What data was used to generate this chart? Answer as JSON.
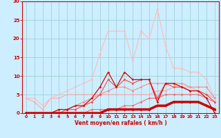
{
  "x": [
    0,
    1,
    2,
    3,
    4,
    5,
    6,
    7,
    8,
    9,
    10,
    11,
    12,
    13,
    14,
    15,
    16,
    17,
    18,
    19,
    20,
    21,
    22,
    23
  ],
  "lines": [
    {
      "y": [
        4,
        3,
        1,
        4,
        4,
        5,
        5,
        5,
        5,
        5,
        5,
        5,
        5,
        5,
        5,
        5,
        6,
        6,
        7,
        7,
        7,
        6,
        5,
        4
      ],
      "color": "#ffaaaa",
      "lw": 0.8,
      "marker": "D",
      "ms": 1.8,
      "zorder": 2
    },
    {
      "y": [
        4,
        4,
        2,
        4,
        5,
        6,
        7,
        8,
        9,
        16,
        22,
        22,
        22,
        14,
        22,
        20,
        28,
        18,
        12,
        12,
        11,
        11,
        9,
        4
      ],
      "color": "#ffbbbb",
      "lw": 0.8,
      "marker": "D",
      "ms": 1.8,
      "zorder": 2
    },
    {
      "y": [
        0,
        0,
        0,
        0,
        1,
        1,
        2,
        3,
        4,
        5,
        6,
        7,
        7,
        6,
        7,
        8,
        8,
        8,
        8,
        8,
        7,
        7,
        7,
        4
      ],
      "color": "#ff8888",
      "lw": 0.8,
      "marker": "D",
      "ms": 1.8,
      "zorder": 2
    },
    {
      "y": [
        0,
        0,
        0,
        0,
        0,
        1,
        1,
        2,
        3,
        5,
        9,
        7,
        9,
        8,
        9,
        9,
        4,
        8,
        7,
        7,
        6,
        6,
        5,
        3
      ],
      "color": "#ff4444",
      "lw": 0.8,
      "marker": "D",
      "ms": 1.8,
      "zorder": 3
    },
    {
      "y": [
        0,
        0,
        0,
        0,
        1,
        1,
        2,
        2,
        4,
        7,
        11,
        7,
        11,
        9,
        9,
        9,
        3,
        8,
        8,
        7,
        6,
        6,
        4,
        0
      ],
      "color": "#dd0000",
      "lw": 0.9,
      "marker": "D",
      "ms": 1.8,
      "zorder": 4
    },
    {
      "y": [
        0,
        0,
        0,
        0,
        0,
        0,
        0,
        0,
        1,
        1,
        1,
        1,
        2,
        2,
        3,
        4,
        4,
        5,
        5,
        5,
        5,
        5,
        4,
        3
      ],
      "color": "#ff6666",
      "lw": 0.8,
      "marker": "D",
      "ms": 1.8,
      "zorder": 2
    },
    {
      "y": [
        0,
        0,
        0,
        0,
        0,
        0,
        0,
        0,
        0,
        0,
        1,
        1,
        1,
        1,
        1,
        1,
        2,
        2,
        3,
        3,
        3,
        3,
        2,
        1
      ],
      "color": "#cc0000",
      "lw": 2.5,
      "marker": "D",
      "ms": 2.0,
      "zorder": 5
    }
  ],
  "xlabel": "Vent moyen/en rafales ( km/h )",
  "xlim": [
    -0.5,
    23.5
  ],
  "ylim": [
    0,
    30
  ],
  "yticks": [
    0,
    5,
    10,
    15,
    20,
    25,
    30
  ],
  "xticks": [
    0,
    1,
    2,
    3,
    4,
    5,
    6,
    7,
    8,
    9,
    10,
    11,
    12,
    13,
    14,
    15,
    16,
    17,
    18,
    19,
    20,
    21,
    22,
    23
  ],
  "bg_color": "#cceeff",
  "grid_color": "#99cccc"
}
